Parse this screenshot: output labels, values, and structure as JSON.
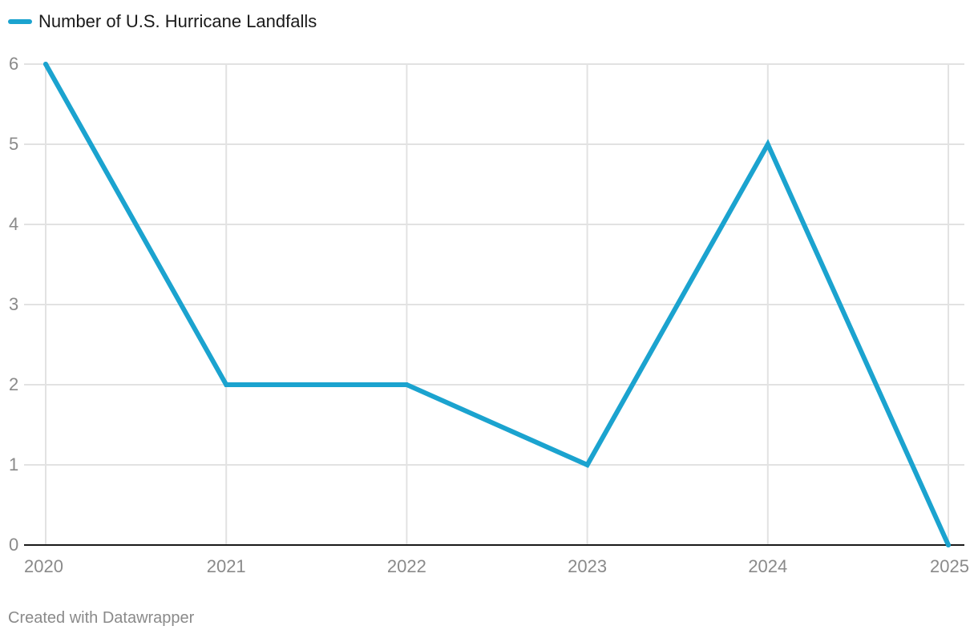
{
  "chart_data": {
    "type": "line",
    "categories": [
      "2020",
      "2021",
      "2022",
      "2023",
      "2024",
      "2025"
    ],
    "series": [
      {
        "name": "Number of U.S. Hurricane Landfalls",
        "values": [
          6,
          2,
          2,
          1,
          5,
          0
        ],
        "color": "#1ba3cf"
      }
    ],
    "y_ticks": [
      "0",
      "1",
      "2",
      "3",
      "4",
      "5",
      "6"
    ],
    "ylim": [
      0,
      6
    ],
    "title": "",
    "xlabel": "",
    "ylabel": "",
    "grid": true,
    "legend_position": "top-left"
  },
  "footer": {
    "credit": "Created with Datawrapper"
  },
  "colors": {
    "grid": "#e2e2e2",
    "axis": "#1a1a1a",
    "tick_label": "#8a8a8a"
  }
}
